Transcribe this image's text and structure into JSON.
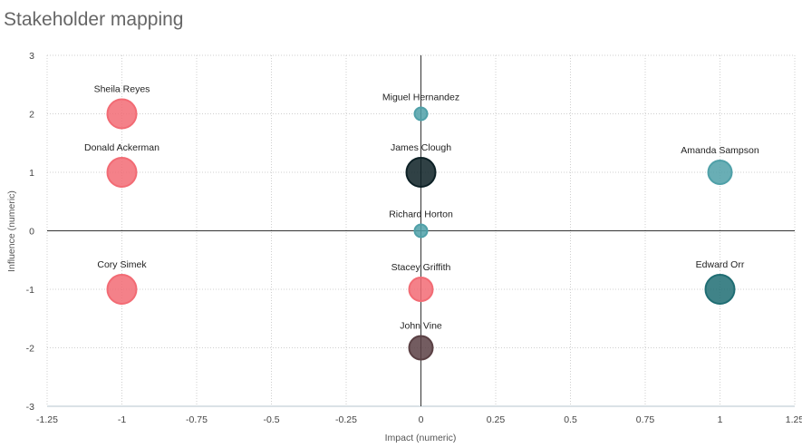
{
  "title": "Stakeholder mapping",
  "chart_data": {
    "type": "scatter",
    "title": "Stakeholder mapping",
    "xlabel": "Impact (numeric)",
    "ylabel": "Influence (numeric)",
    "xlim": [
      -1.25,
      1.25
    ],
    "ylim": [
      -3,
      3
    ],
    "x_ticks": [
      "-1.25",
      "-1",
      "-0.75",
      "-0.5",
      "-0.25",
      "0",
      "0.25",
      "0.5",
      "0.75",
      "1",
      "1.25"
    ],
    "y_ticks": [
      "3",
      "2",
      "1",
      "0",
      "-1",
      "-2",
      "-3"
    ],
    "grid": true,
    "legend": "none",
    "points": [
      {
        "label": "Sheila Reyes",
        "x": -1,
        "y": 2,
        "size": "large",
        "color": "#f26b74"
      },
      {
        "label": "Donald Ackerman",
        "x": -1,
        "y": 1,
        "size": "large",
        "color": "#f26b74"
      },
      {
        "label": "Cory Simek",
        "x": -1,
        "y": -1,
        "size": "large",
        "color": "#f26b74"
      },
      {
        "label": "Miguel Hernandez",
        "x": 0,
        "y": 2,
        "size": "small",
        "color": "#4fa0a8"
      },
      {
        "label": "James Clough",
        "x": 0,
        "y": 1,
        "size": "large",
        "color": "#0c2025"
      },
      {
        "label": "Richard Horton",
        "x": 0,
        "y": 0,
        "size": "small",
        "color": "#4fa0a8"
      },
      {
        "label": "Stacey Griffith",
        "x": 0,
        "y": -1,
        "size": "medium",
        "color": "#f26b74"
      },
      {
        "label": "John Vine",
        "x": 0,
        "y": -2,
        "size": "medium",
        "color": "#5a4044"
      },
      {
        "label": "Amanda Sampson",
        "x": 1,
        "y": 1,
        "size": "medium",
        "color": "#4fa0a8"
      },
      {
        "label": "Edward Orr",
        "x": 1,
        "y": -1,
        "size": "large",
        "color": "#1f6d73"
      }
    ]
  }
}
